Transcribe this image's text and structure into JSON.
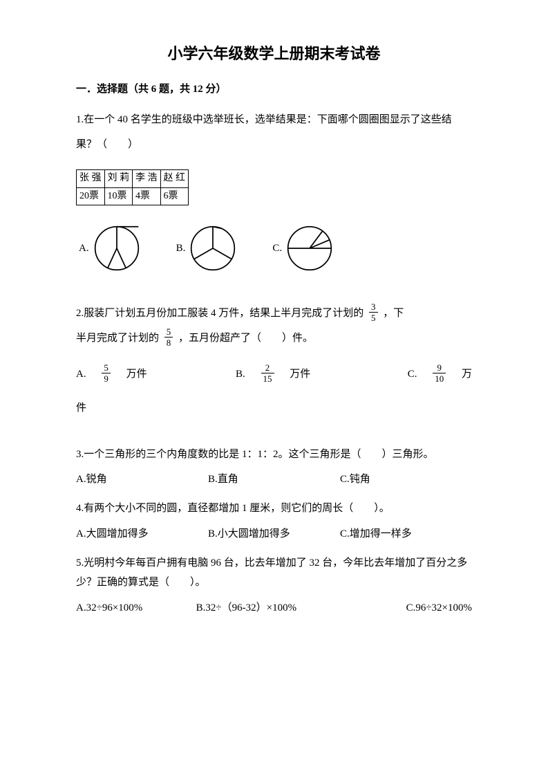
{
  "title": "小学六年级数学上册期末考试卷",
  "section": "一．选择题（共 6 题，共 12 分）",
  "q1": {
    "text": "1.在一个 40 名学生的班级中选举班长，选举结果是：下面哪个圆圈图显示了这些结果？（　　）",
    "table": {
      "headers": [
        "张 强",
        "刘 莉",
        "李 浩",
        "赵 红"
      ],
      "row": [
        "20票",
        "10票",
        "4票",
        "6票"
      ]
    },
    "options": {
      "A": "A.",
      "B": "B.",
      "C": "C."
    },
    "pieA": {
      "stroke": "#000000",
      "stroke_width": 2,
      "lines": [
        [
          0,
          -1,
          1,
          -1
        ],
        [
          0,
          0,
          0,
          -1
        ],
        [
          0,
          0,
          0.42,
          0.91
        ],
        [
          0,
          0,
          -0.42,
          0.91
        ]
      ]
    },
    "pieB": {
      "stroke": "#000000",
      "stroke_width": 2,
      "lines": [
        [
          0,
          0,
          0,
          -1
        ],
        [
          0,
          0,
          -0.87,
          0.5
        ],
        [
          0,
          0,
          0.87,
          0.5
        ],
        [
          0,
          -1,
          0.42,
          -0.91
        ]
      ]
    },
    "pieC": {
      "stroke": "#000000",
      "stroke_width": 2,
      "lines": [
        [
          -1,
          0,
          1,
          0
        ],
        [
          0,
          0,
          0.6,
          -0.8
        ],
        [
          0,
          0,
          0.92,
          -0.39
        ]
      ]
    }
  },
  "q2": {
    "part1_a": "2.服装厂计划五月份加工服装 4 万件，结果上半月完成了计划的",
    "frac1": {
      "n": "3",
      "d": "5"
    },
    "part1_b": "，下",
    "part2_a": "半月完成了计划的",
    "frac2": {
      "n": "5",
      "d": "8"
    },
    "part2_b": "，五月份超产了（　　）件。",
    "optA_pre": "A.　",
    "optA_frac": {
      "n": "5",
      "d": "9"
    },
    "optA_post": "　万件",
    "optB_pre": "B.　",
    "optB_frac": {
      "n": "2",
      "d": "15"
    },
    "optB_post": "　万件",
    "optC_pre": "C.　",
    "optC_frac": {
      "n": "9",
      "d": "10"
    },
    "optC_post": "　万",
    "tail": "件"
  },
  "q3": {
    "text": "3.一个三角形的三个内角度数的比是 1：1：2。这个三角形是（　　）三角形。",
    "A": "A.锐角",
    "B": "B.直角",
    "C": "C.钝角"
  },
  "q4": {
    "text": "4.有两个大小不同的圆，直径都增加 1 厘米，则它们的周长（　　）。",
    "A": "A.大圆增加得多",
    "B": "B.小大圆增加得多",
    "C": "C.增加得一样多"
  },
  "q5": {
    "text": "5.光明村今年每百户拥有电脑 96 台，比去年增加了 32 台，今年比去年增加了百分之多少？正确的算式是（　　）。",
    "A": "A.32÷96×100%",
    "B": "B.32÷（96-32）×100%",
    "C": "C.96÷32×100%"
  }
}
